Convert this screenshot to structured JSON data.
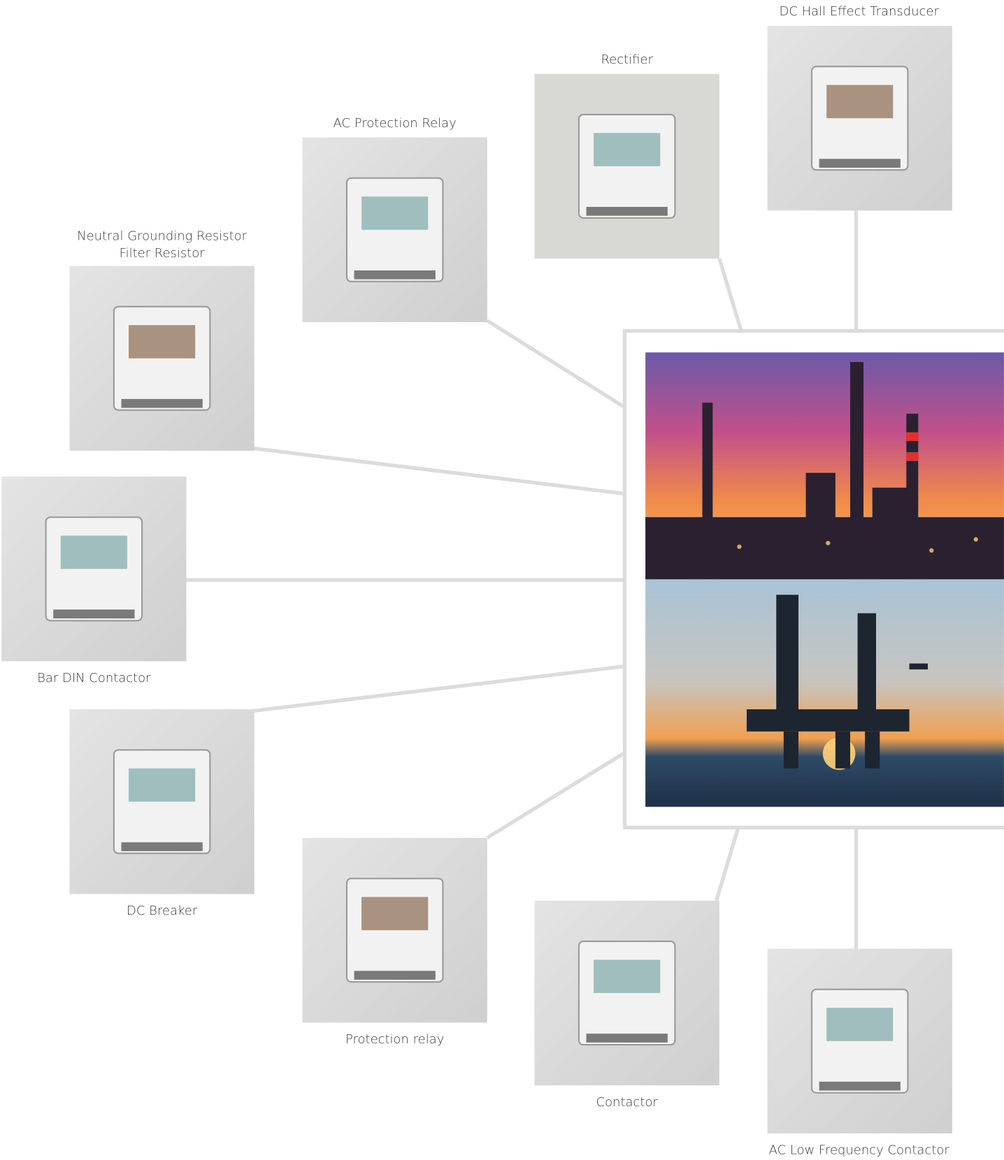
{
  "nodes": [
    {
      "label": "DC Hall Effect Transducer"
    },
    {
      "label": "Rectifier"
    },
    {
      "label": "AC Protection Relay"
    },
    {
      "label": [
        "Neutral Grounding Resistor",
        "Filter Resistor"
      ]
    },
    {
      "label": "Bar DIN Contactor"
    },
    {
      "label": "DC Breaker"
    },
    {
      "label": "Protection relay"
    },
    {
      "label": "Contactor"
    },
    {
      "label": "AC Low Frequency Contactor"
    }
  ]
}
